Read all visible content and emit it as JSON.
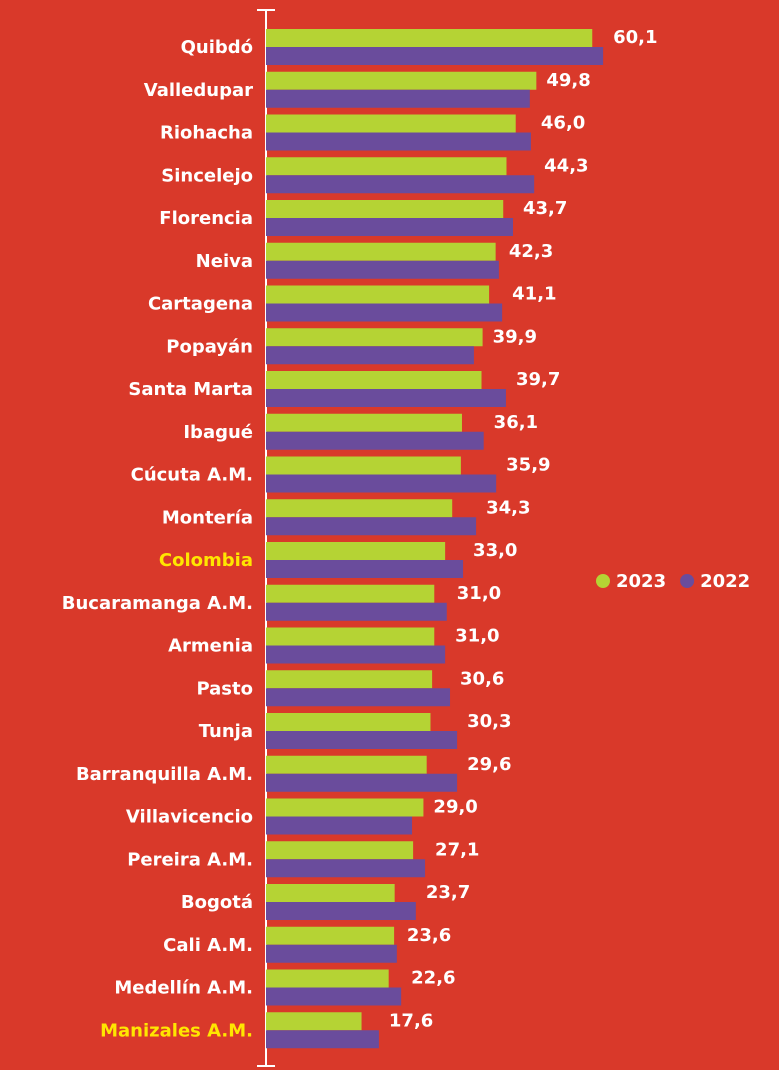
{
  "chart_data": {
    "type": "bar",
    "orientation": "horizontal",
    "categories": [
      "Quibdó",
      "Valledupar",
      "Riohacha",
      "Sincelejo",
      "Florencia",
      "Neiva",
      "Cartagena",
      "Popayán",
      "Santa Marta",
      "Ibagué",
      "Cúcuta A.M.",
      "Montería",
      "Colombia",
      "Bucaramanga A.M.",
      "Armenia",
      "Pasto",
      "Tunja",
      "Barranquilla A.M.",
      "Villavicencio",
      "Pereira A.M.",
      "Bogotá",
      "Cali A.M.",
      "Medellín A.M.",
      "Manizales A.M."
    ],
    "series": [
      {
        "name": "2023",
        "color": "#b5d334",
        "values": [
          60.1,
          49.8,
          46.0,
          44.3,
          43.7,
          42.3,
          41.1,
          39.9,
          39.7,
          36.1,
          35.9,
          34.3,
          33.0,
          31.0,
          31.0,
          30.6,
          30.3,
          29.6,
          29.0,
          27.1,
          23.7,
          23.6,
          22.6,
          17.6
        ],
        "value_labels": [
          "60,1",
          "49,8",
          "46,0",
          "44,3",
          "43,7",
          "42,3",
          "41,1",
          "39,9",
          "39,7",
          "36,1",
          "35,9",
          "34,3",
          "33,0",
          "31,0",
          "31,0",
          "30,6",
          "30,3",
          "29,6",
          "29,0",
          "27,1",
          "23,7",
          "23,6",
          "22,6",
          "17,6"
        ]
      },
      {
        "name": "2022",
        "color": "#6a4c9c",
        "values": [
          62.1,
          48.6,
          48.8,
          49.4,
          45.5,
          42.9,
          43.5,
          38.3,
          44.2,
          40.1,
          42.4,
          38.7,
          36.3,
          33.3,
          33.0,
          33.9,
          35.2,
          35.2,
          26.9,
          29.3,
          27.6,
          24.1,
          24.9,
          20.8
        ]
      }
    ],
    "xlim": [
      0,
      94.5
    ],
    "highlight_categories": [
      "Colombia",
      "Manizales A.M."
    ],
    "highlight_color": "#ffe600",
    "legend": "right"
  }
}
